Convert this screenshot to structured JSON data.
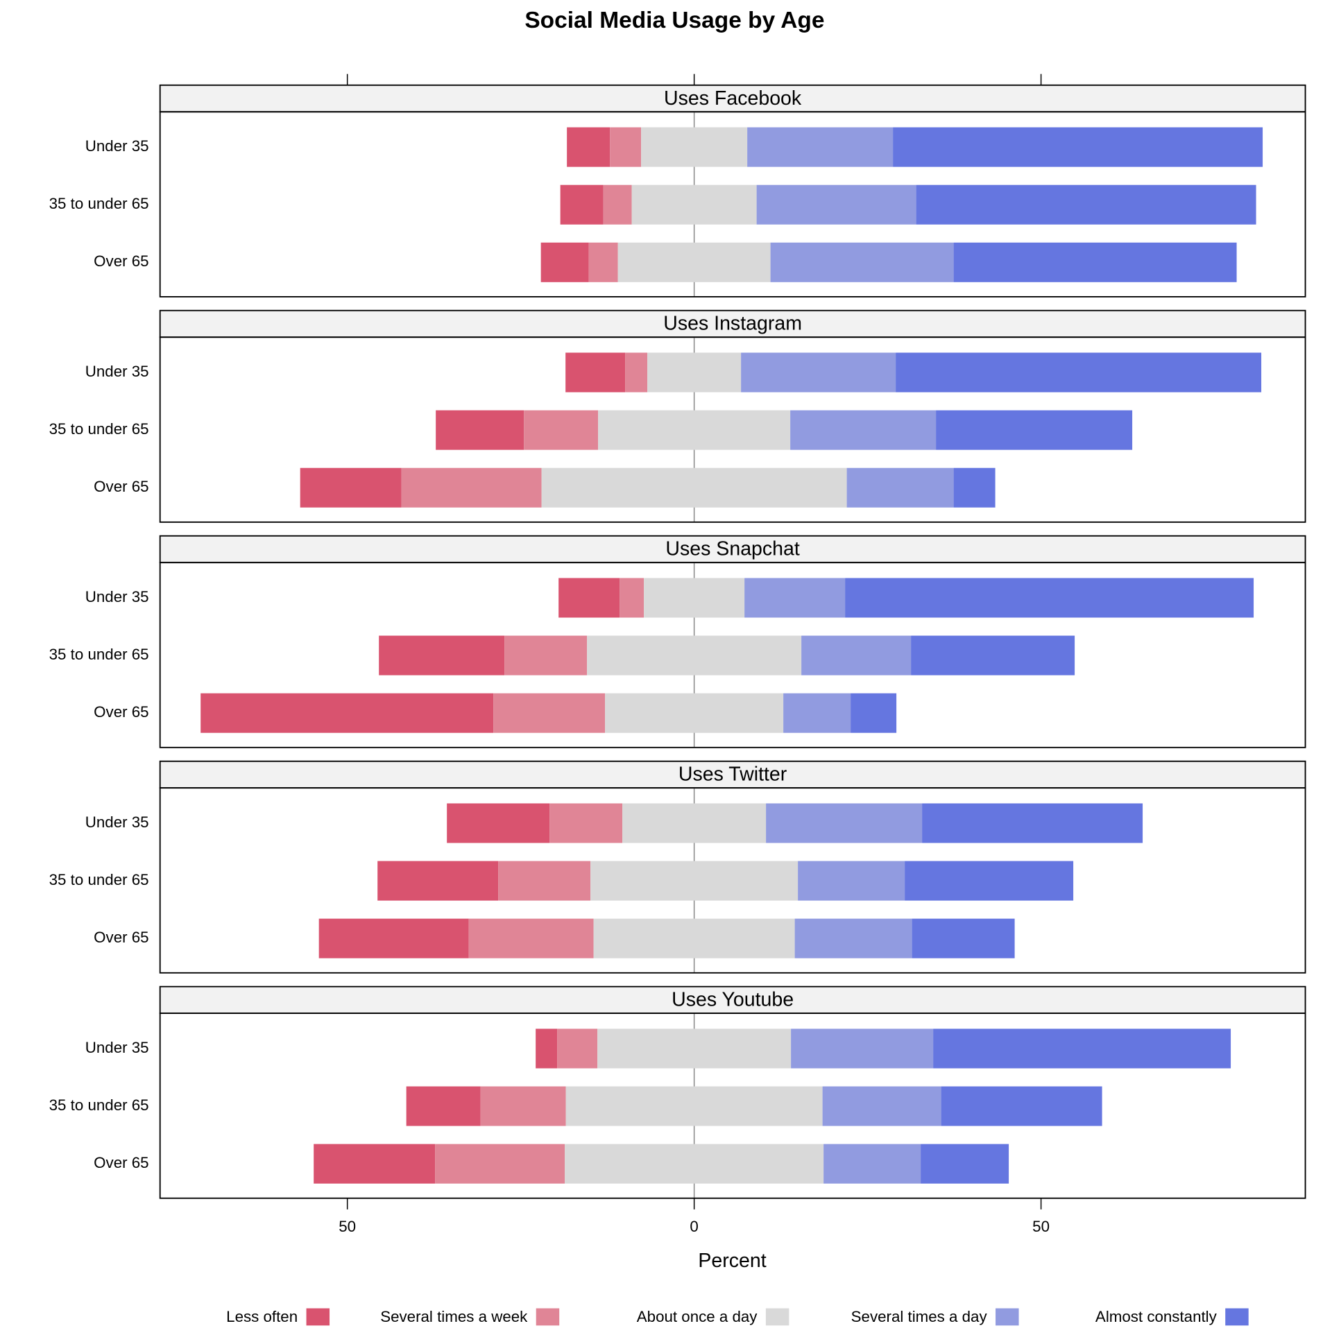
{
  "chart_data": {
    "type": "diverging_bar",
    "title": "Social Media Usage by Age",
    "xlabel": "Percent",
    "xlim": [
      -77.0,
      88.1
    ],
    "xticks": [
      {
        "value": -50,
        "label": "50"
      },
      0,
      50
    ],
    "categories": [
      "Under 35",
      "35 to under 65",
      "Over 65"
    ],
    "series": [
      {
        "name": "Less often",
        "color": "#d9536f"
      },
      {
        "name": "Several times a week",
        "color": "#e08596"
      },
      {
        "name": "About once a day",
        "color": "#d9d9d9"
      },
      {
        "name": "Several times a day",
        "color": "#919be0"
      },
      {
        "name": "Almost constantly",
        "color": "#6576e0"
      }
    ],
    "panels": [
      {
        "title": "Uses Facebook",
        "values": [
          [
            6.2,
            4.5,
            15.3,
            21.0,
            53.3
          ],
          [
            6.2,
            4.1,
            18.0,
            23.0,
            49.0
          ],
          [
            6.9,
            4.2,
            22.0,
            26.4,
            40.8
          ]
        ]
      },
      {
        "title": "Uses Instagram",
        "values": [
          [
            8.6,
            3.2,
            13.5,
            22.3,
            52.7
          ],
          [
            12.7,
            10.7,
            27.7,
            21.0,
            28.3
          ],
          [
            14.6,
            20.2,
            44.0,
            15.4,
            6.0
          ]
        ]
      },
      {
        "title": "Uses Snapchat",
        "values": [
          [
            8.8,
            3.5,
            14.5,
            14.5,
            58.9
          ],
          [
            18.1,
            11.9,
            30.9,
            15.8,
            23.6
          ],
          [
            42.2,
            16.1,
            25.7,
            9.7,
            6.6
          ]
        ]
      },
      {
        "title": "Uses Twitter",
        "values": [
          [
            14.8,
            10.5,
            20.7,
            22.5,
            31.8
          ],
          [
            17.4,
            13.3,
            29.9,
            15.4,
            24.3
          ],
          [
            21.6,
            18.0,
            29.0,
            16.9,
            14.8
          ]
        ]
      },
      {
        "title": "Uses Youtube",
        "values": [
          [
            3.1,
            5.8,
            27.9,
            20.5,
            42.9
          ],
          [
            10.7,
            12.3,
            37.0,
            17.1,
            23.2
          ],
          [
            17.5,
            18.7,
            37.3,
            14.0,
            12.7
          ]
        ]
      }
    ]
  }
}
